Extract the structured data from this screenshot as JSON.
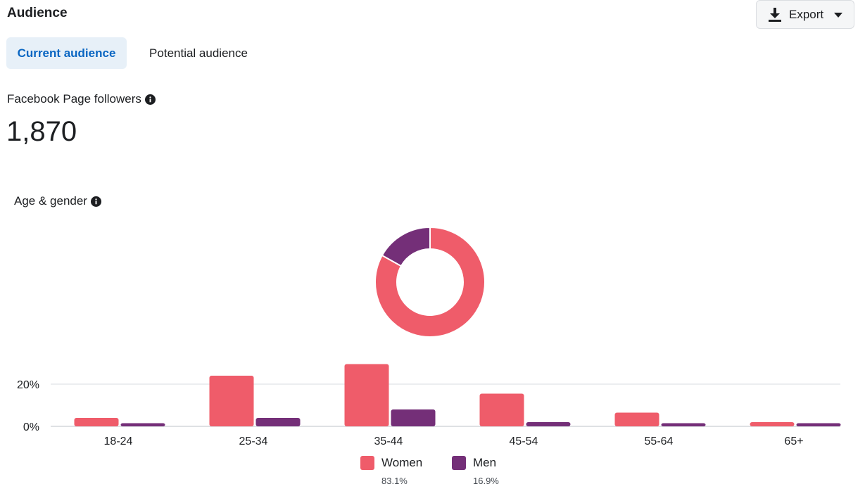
{
  "header": {
    "title": "Audience",
    "export_label": "Export",
    "export_icon": "download-icon",
    "caret_icon": "caret-down-icon"
  },
  "tabs": [
    {
      "label": "Current audience",
      "active": true
    },
    {
      "label": "Potential audience",
      "active": false
    }
  ],
  "followers": {
    "label": "Facebook Page followers",
    "value": "1,870"
  },
  "age_gender": {
    "label": "Age & gender"
  },
  "colors": {
    "women": "#ef5c6a",
    "men": "#742f78",
    "active_tab_bg": "#e7f0f8",
    "active_tab_text": "#0a66c2"
  },
  "chart_data": [
    {
      "type": "pie",
      "donut": true,
      "labels": [
        "Women",
        "Men"
      ],
      "values": [
        83.1,
        16.9
      ]
    },
    {
      "type": "bar",
      "categories": [
        "18-24",
        "25-34",
        "35-44",
        "45-54",
        "55-64",
        "65+"
      ],
      "series": [
        {
          "name": "Women",
          "values": [
            4,
            24,
            29.5,
            15.5,
            6.5,
            2
          ]
        },
        {
          "name": "Men",
          "values": [
            1.5,
            4,
            8,
            2,
            1.5,
            1.5
          ]
        }
      ],
      "yticks": [
        "0%",
        "20%"
      ],
      "ylim": [
        0,
        30
      ],
      "grid": true
    }
  ],
  "legend": [
    {
      "name": "Women",
      "pct": "83.1%"
    },
    {
      "name": "Men",
      "pct": "16.9%"
    }
  ]
}
